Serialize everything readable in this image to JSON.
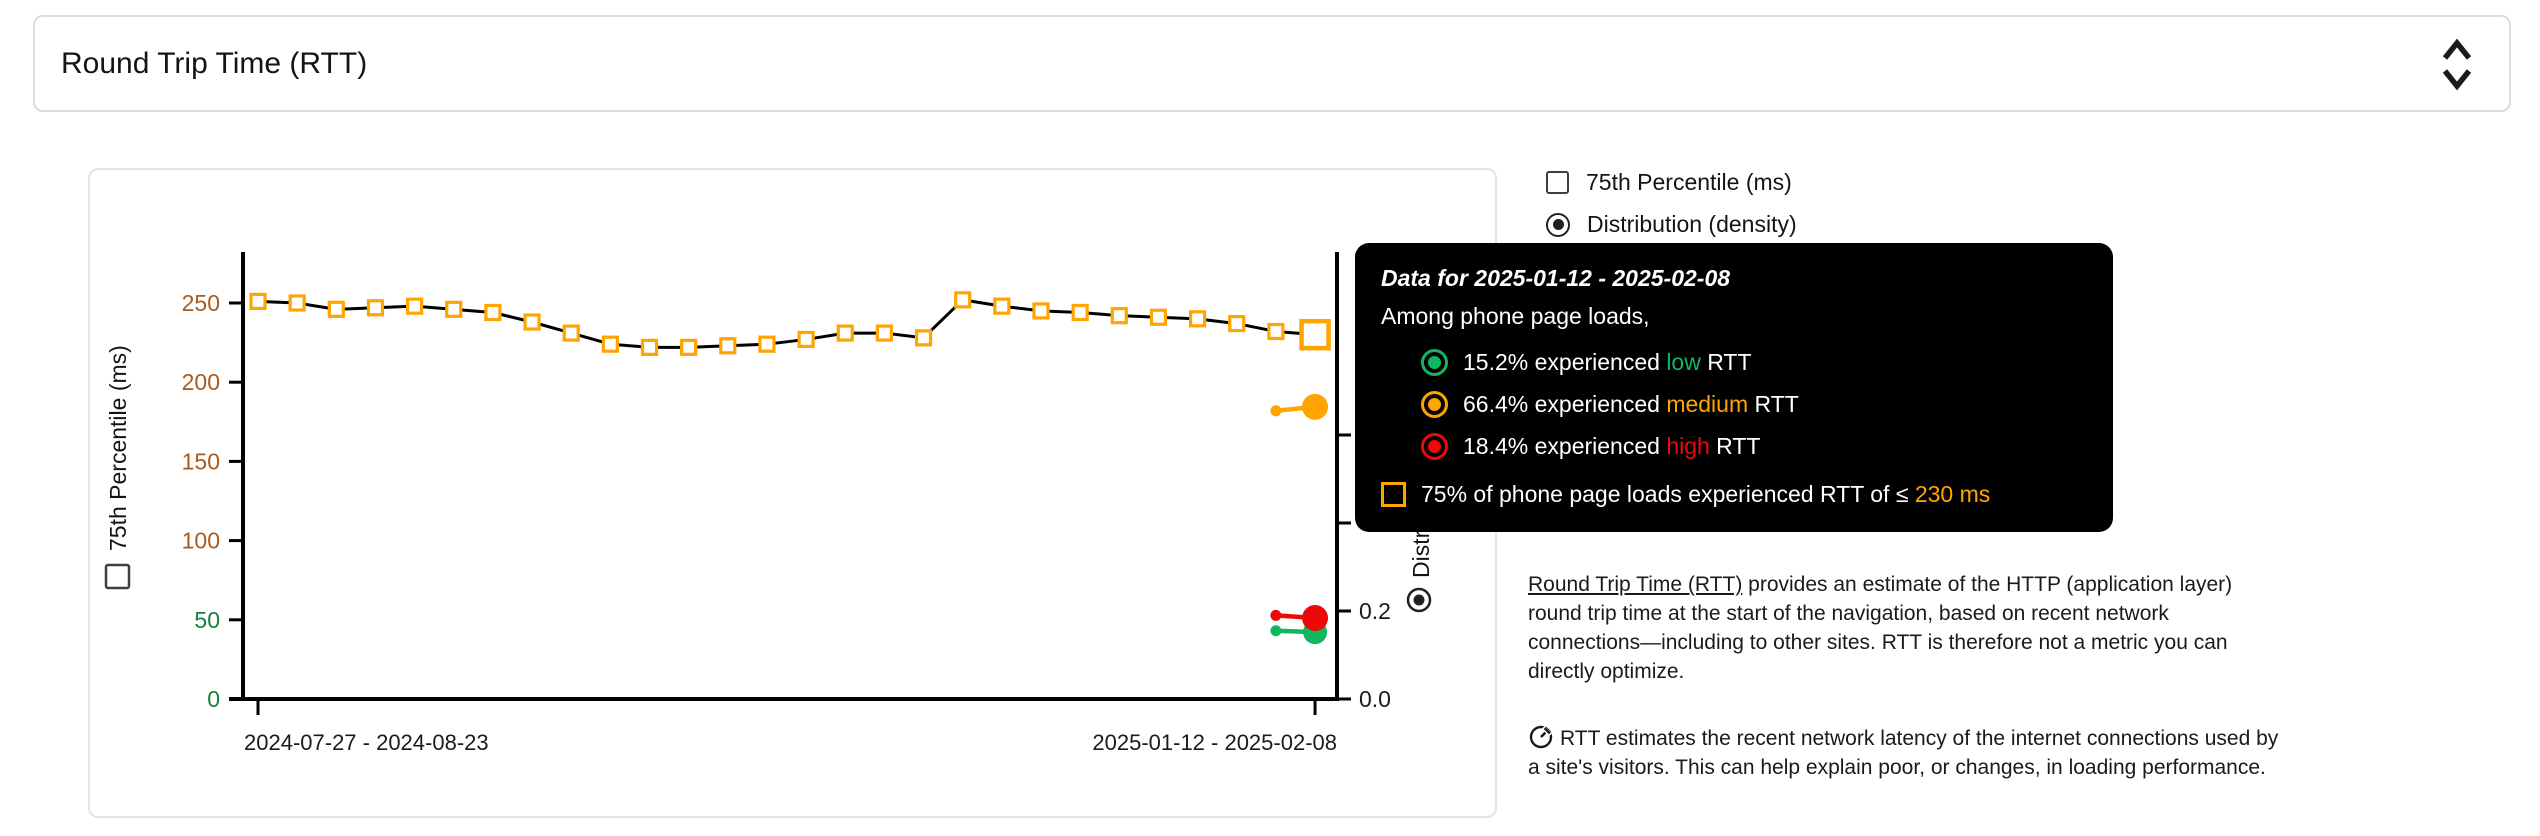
{
  "selector": {
    "value": "Round Trip Time (RTT)"
  },
  "legend": {
    "items": [
      {
        "label": "75th Percentile (ms)",
        "control": "checkbox",
        "checked": false
      },
      {
        "label": "Distribution (density)",
        "control": "radio",
        "checked": true
      }
    ]
  },
  "chart_data": {
    "type": "line",
    "x_label_first": "2024-07-27 - 2024-08-23",
    "x_label_last": "2025-01-12 - 2025-02-08",
    "left_axis": {
      "label": "75th Percentile (ms)",
      "ticks": [
        0,
        50,
        100,
        150,
        200,
        250
      ],
      "range": [
        0,
        282
      ],
      "tick_color_good": "#188038",
      "tick_color_medium": "#A85B1E",
      "good_max": 50
    },
    "right_axis": {
      "label": "Distribution (density)",
      "ticks": [
        0.0,
        0.2,
        0.4,
        0.6
      ],
      "range": [
        0,
        1.0
      ],
      "tick_color": "#1b1b1b"
    },
    "p75_series": {
      "name": "75th Percentile (ms)",
      "marker_color": "#FFA400",
      "line_color": "#000000",
      "values": [
        251,
        250,
        246,
        247,
        248,
        246,
        244,
        238,
        231,
        224,
        222,
        222,
        223,
        224,
        227,
        231,
        231,
        228,
        252,
        248,
        245,
        244,
        242,
        241,
        240,
        237,
        232,
        230
      ],
      "selected_index": 27,
      "selected_value": 230
    },
    "density_series": [
      {
        "name": "low",
        "color": "#0FB760",
        "points": [
          0.155,
          0.152
        ]
      },
      {
        "name": "medium",
        "color": "#FFA400",
        "points": [
          0.655,
          0.664
        ]
      },
      {
        "name": "high",
        "color": "#EE0909",
        "points": [
          0.19,
          0.184
        ]
      }
    ],
    "grid": false,
    "legend_position": "top-right"
  },
  "tooltip": {
    "title": "Data for 2025-01-12 - 2025-02-08",
    "subtitle": "Among phone page loads,",
    "rows": [
      {
        "name": "low",
        "color": "#0FB760",
        "prefix": "15.2% experienced ",
        "highlight": "low",
        "suffix": " RTT"
      },
      {
        "name": "medium",
        "color": "#FFA400",
        "prefix": "66.4% experienced ",
        "highlight": "medium",
        "suffix": " RTT"
      },
      {
        "name": "high",
        "color": "#EE0909",
        "prefix": "18.4% experienced ",
        "highlight": "high",
        "suffix": " RTT"
      }
    ],
    "threshold": {
      "prefix": "75% of phone page loads experienced RTT of ≤ ",
      "value": "230 ms",
      "value_color": "#FFA400"
    }
  },
  "description": {
    "p1_link": "Round Trip Time (RTT)",
    "p1_rest": " provides an estimate of the HTTP (application layer) round trip time at the start of the navigation, based on recent network connections—including to other sites. RTT is therefore not a metric you can directly optimize.",
    "p2": "RTT estimates the recent network latency of the internet connections used by a site's visitors. This can help explain poor, or changes, in loading performance."
  }
}
